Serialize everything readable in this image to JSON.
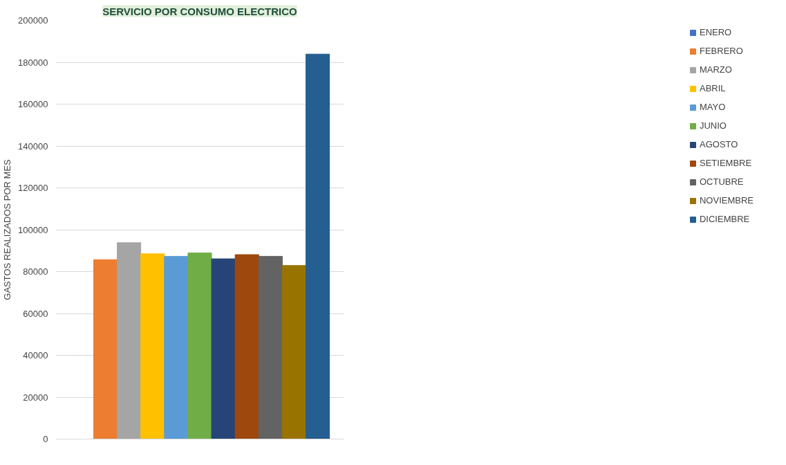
{
  "chart_data": {
    "type": "bar",
    "title": "SERVICIO POR CONSUMO ELECTRICO",
    "ylabel": "GASTOS REALIZADOS POR MES",
    "categories": [
      null
    ],
    "series": [
      {
        "name": "ENERO",
        "color": "#4472c4",
        "values": [
          0
        ]
      },
      {
        "name": "FEBRERO",
        "color": "#ed7d31",
        "values": [
          85700
        ]
      },
      {
        "name": "MARZO",
        "color": "#a5a5a5",
        "values": [
          93800
        ]
      },
      {
        "name": "ABRIL",
        "color": "#ffc000",
        "values": [
          88500
        ]
      },
      {
        "name": "MAYO",
        "color": "#5b9bd5",
        "values": [
          87300
        ]
      },
      {
        "name": "JUNIO",
        "color": "#70ad47",
        "values": [
          88900
        ]
      },
      {
        "name": "AGOSTO",
        "color": "#264478",
        "values": [
          86100
        ]
      },
      {
        "name": "SETIEMBRE",
        "color": "#9e480e",
        "values": [
          88100
        ]
      },
      {
        "name": "OCTUBRE",
        "color": "#636363",
        "values": [
          87300
        ]
      },
      {
        "name": "NOVIEMBRE",
        "color": "#997300",
        "values": [
          82900
        ]
      },
      {
        "name": "DICIEMBRE",
        "color": "#255e91",
        "values": [
          183900
        ]
      }
    ],
    "ylim": [
      0,
      200000
    ],
    "yticks": [
      0,
      20000,
      40000,
      60000,
      80000,
      100000,
      120000,
      140000,
      160000,
      180000,
      200000
    ],
    "grid": "y",
    "legend": "right",
    "tick_labels": "y"
  }
}
